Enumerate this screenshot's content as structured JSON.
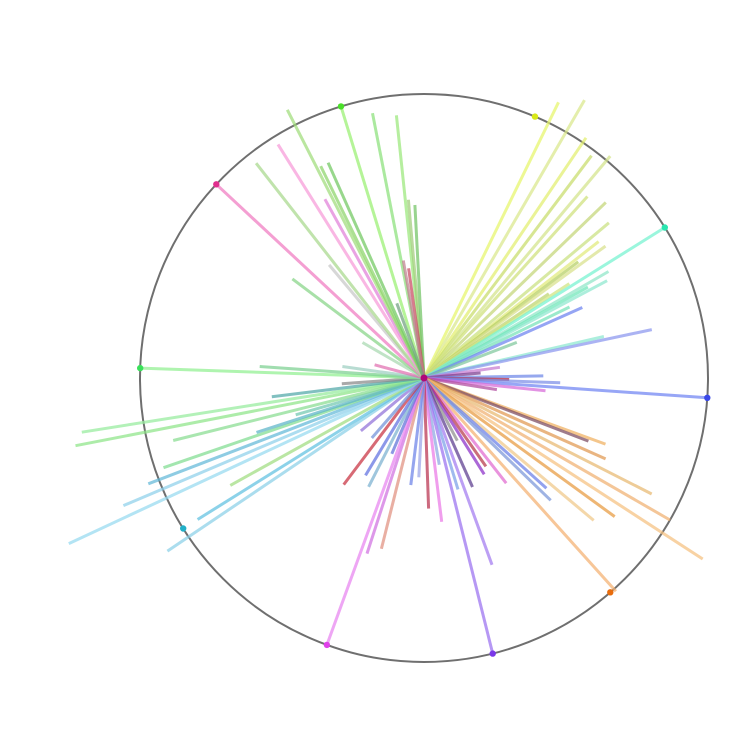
{
  "chart_data": {
    "type": "radial-lines",
    "title": "",
    "grid": false,
    "legend": "none",
    "circle": {
      "radius": 1.0,
      "color": "#6f6f6f"
    },
    "rays": [
      {
        "angle": 64,
        "length": 1.08,
        "color": "#e6f56a"
      },
      {
        "angle": 60,
        "length": 1.13,
        "color": "#d9e88a"
      },
      {
        "angle": 56,
        "length": 1.02,
        "color": "#e2ee6e"
      },
      {
        "angle": 53,
        "length": 0.98,
        "color": "#c8dc6a"
      },
      {
        "angle": 50,
        "length": 1.02,
        "color": "#d3e389"
      },
      {
        "angle": 48,
        "length": 0.86,
        "color": "#cfe07a"
      },
      {
        "angle": 44,
        "length": 0.89,
        "color": "#c3d677"
      },
      {
        "angle": 40,
        "length": 0.85,
        "color": "#c9e17f"
      },
      {
        "angle": 38,
        "length": 0.78,
        "color": "#e0ea7a"
      },
      {
        "angle": 37,
        "length": 0.68,
        "color": "#b5cf63"
      },
      {
        "angle": 36,
        "length": 0.79,
        "color": "#d8e08a"
      },
      {
        "angle": 34,
        "length": 0.53,
        "color": "#bed46f"
      },
      {
        "angle": 33,
        "length": 0.61,
        "color": "#cfe47f"
      },
      {
        "angle": 32,
        "length": 1.0,
        "color": "#75f2d0"
      },
      {
        "angle": 30,
        "length": 0.75,
        "color": "#8fe6c8"
      },
      {
        "angle": 29,
        "length": 0.66,
        "color": "#6ee6b8"
      },
      {
        "angle": 28,
        "length": 0.73,
        "color": "#8de8cf"
      },
      {
        "angle": 26,
        "length": 0.57,
        "color": "#76e2b8"
      },
      {
        "angle": 24,
        "length": 0.61,
        "color": "#6c82f0"
      },
      {
        "angle": 21,
        "length": 0.35,
        "color": "#7fc79c"
      },
      {
        "angle": 13,
        "length": 0.65,
        "color": "#8ce8d0"
      },
      {
        "angle": 12,
        "length": 0.82,
        "color": "#8a96ef"
      },
      {
        "angle": 8,
        "length": 0.27,
        "color": "#c67ad0"
      },
      {
        "angle": 5,
        "length": 0.2,
        "color": "#7a3c8e"
      },
      {
        "angle": 1,
        "length": 0.42,
        "color": "#6d86e8"
      },
      {
        "angle": -1,
        "length": 0.3,
        "color": "#b01f3a"
      },
      {
        "angle": -2,
        "length": 0.48,
        "color": "#7c8ee8"
      },
      {
        "angle": -4,
        "length": 1.0,
        "color": "#6f83f2"
      },
      {
        "angle": -6,
        "length": 0.43,
        "color": "#d76ad8"
      },
      {
        "angle": -9,
        "length": 0.26,
        "color": "#b04aa0"
      },
      {
        "angle": -20,
        "length": 0.68,
        "color": "#f0b060"
      },
      {
        "angle": -21,
        "length": 0.62,
        "color": "#7a4a60"
      },
      {
        "angle": -24,
        "length": 0.7,
        "color": "#e09850"
      },
      {
        "angle": -27,
        "length": 0.9,
        "color": "#e8b870"
      },
      {
        "angle": -30,
        "length": 1.0,
        "color": "#f0b070"
      },
      {
        "angle": -33,
        "length": 1.17,
        "color": "#f5c080"
      },
      {
        "angle": -36,
        "length": 0.83,
        "color": "#e89a3e"
      },
      {
        "angle": -40,
        "length": 0.78,
        "color": "#f0c888"
      },
      {
        "angle": -42,
        "length": 0.58,
        "color": "#6a7ee8"
      },
      {
        "angle": -44,
        "length": 0.62,
        "color": "#7a96d8"
      },
      {
        "angle": -48,
        "length": 1.01,
        "color": "#f4b070"
      },
      {
        "angle": -52,
        "length": 0.47,
        "color": "#e06ad0"
      },
      {
        "angle": -55,
        "length": 0.38,
        "color": "#b63848"
      },
      {
        "angle": -58,
        "length": 0.4,
        "color": "#8a2ec8"
      },
      {
        "angle": -62,
        "length": 0.25,
        "color": "#8e8e8e"
      },
      {
        "angle": -66,
        "length": 0.42,
        "color": "#5a3a8e"
      },
      {
        "angle": -70,
        "length": 0.7,
        "color": "#a27af0"
      },
      {
        "angle": -73,
        "length": 0.41,
        "color": "#7aa0e8"
      },
      {
        "angle": -76,
        "length": 1.0,
        "color": "#9a70f0"
      },
      {
        "angle": -80,
        "length": 0.31,
        "color": "#8ea6e2"
      },
      {
        "angle": -83,
        "length": 0.51,
        "color": "#ea78e6"
      },
      {
        "angle": -88,
        "length": 0.46,
        "color": "#b8304e"
      },
      {
        "angle": -93,
        "length": 0.35,
        "color": "#9aa4e8"
      },
      {
        "angle": -97,
        "length": 0.38,
        "color": "#6c82e8"
      },
      {
        "angle": -104,
        "length": 0.62,
        "color": "#e09080"
      },
      {
        "angle": -108,
        "length": 0.65,
        "color": "#d070e0"
      },
      {
        "angle": -110,
        "length": 1.0,
        "color": "#e884f0"
      },
      {
        "angle": -113,
        "length": 0.29,
        "color": "#6070d8"
      },
      {
        "angle": -117,
        "length": 0.43,
        "color": "#7ab0d0"
      },
      {
        "angle": -121,
        "length": 0.4,
        "color": "#6070e0"
      },
      {
        "angle": -127,
        "length": 0.47,
        "color": "#c83040"
      },
      {
        "angle": -131,
        "length": 0.28,
        "color": "#7090d8"
      },
      {
        "angle": -140,
        "length": 0.29,
        "color": "#9070d8"
      },
      {
        "angle": -146,
        "length": 1.09,
        "color": "#8ad0e8"
      },
      {
        "angle": -148,
        "length": 0.94,
        "color": "#60c0e0"
      },
      {
        "angle": -151,
        "length": 0.78,
        "color": "#a0dc80"
      },
      {
        "angle": -155,
        "length": 1.38,
        "color": "#96daf0"
      },
      {
        "angle": -157,
        "length": 1.15,
        "color": "#8ed0ea"
      },
      {
        "angle": -159,
        "length": 1.04,
        "color": "#62b8d8"
      },
      {
        "angle": -161,
        "length": 0.97,
        "color": "#80dc90"
      },
      {
        "angle": -162,
        "length": 0.62,
        "color": "#5cb4c8"
      },
      {
        "angle": -164,
        "length": 0.47,
        "color": "#70c8b0"
      },
      {
        "angle": -166,
        "length": 0.91,
        "color": "#88dc90"
      },
      {
        "angle": -169,
        "length": 1.25,
        "color": "#8ee488"
      },
      {
        "angle": -171,
        "length": 1.22,
        "color": "#96ec9c"
      },
      {
        "angle": -173,
        "length": 0.54,
        "color": "#50a8a8"
      },
      {
        "angle": -176,
        "length": 0.29,
        "color": "#888888"
      },
      {
        "angle": 178,
        "length": 1.0,
        "color": "#90f090"
      },
      {
        "angle": 176,
        "length": 0.58,
        "color": "#7cd090"
      },
      {
        "angle": 172,
        "length": 0.29,
        "color": "#9ccfc0"
      },
      {
        "angle": 165,
        "length": 0.18,
        "color": "#e06fb0"
      },
      {
        "angle": 150,
        "length": 0.25,
        "color": "#a8d8b0"
      },
      {
        "angle": 143,
        "length": 0.58,
        "color": "#86d486"
      },
      {
        "angle": 137,
        "length": 1.0,
        "color": "#f07ac0"
      },
      {
        "angle": 130,
        "length": 0.52,
        "color": "#c8c8c8"
      },
      {
        "angle": 128,
        "length": 0.96,
        "color": "#a8d88c"
      },
      {
        "angle": 122,
        "length": 0.97,
        "color": "#f69ad8"
      },
      {
        "angle": 119,
        "length": 0.72,
        "color": "#e080d8"
      },
      {
        "angle": 117,
        "length": 1.06,
        "color": "#a0dc7a"
      },
      {
        "angle": 116,
        "length": 0.83,
        "color": "#8cd46a"
      },
      {
        "angle": 114,
        "length": 0.83,
        "color": "#70c860"
      },
      {
        "angle": 107,
        "length": 1.0,
        "color": "#98f070"
      },
      {
        "angle": 101,
        "length": 0.95,
        "color": "#8ae07a"
      },
      {
        "angle": 96,
        "length": 0.93,
        "color": "#9ae87a"
      },
      {
        "angle": 95,
        "length": 0.63,
        "color": "#a0cc78"
      },
      {
        "angle": 93,
        "length": 0.61,
        "color": "#72c464"
      },
      {
        "angle": 98,
        "length": 0.39,
        "color": "#c84a60"
      },
      {
        "angle": 100,
        "length": 0.42,
        "color": "#c08090"
      },
      {
        "angle": 110,
        "length": 0.28,
        "color": "#70a080"
      }
    ],
    "endpoint_markers": [
      {
        "angle": 107,
        "color": "#4ae02a"
      },
      {
        "angle": 67,
        "color": "#d8e818"
      },
      {
        "angle": 32,
        "color": "#2ae6b0"
      },
      {
        "angle": -4,
        "color": "#3a48e8"
      },
      {
        "angle": -49,
        "color": "#e86c0c"
      },
      {
        "angle": -76,
        "color": "#7a38e8"
      },
      {
        "angle": -110,
        "color": "#e040ea"
      },
      {
        "angle": -148,
        "color": "#22b0c8"
      },
      {
        "angle": 178,
        "color": "#3ae05a"
      },
      {
        "angle": 137,
        "color": "#e0308e"
      }
    ],
    "center_color": "#b00878"
  }
}
